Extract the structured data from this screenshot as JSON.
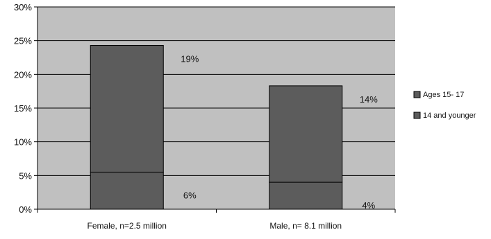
{
  "chart_data": {
    "type": "bar",
    "stacked": true,
    "categories": [
      "Female, n=2.5 million",
      "Male, n= 8.1 million"
    ],
    "series": [
      {
        "name": "14 and younger",
        "values": [
          5.5,
          4.0
        ]
      },
      {
        "name": "Ages 15- 17",
        "values": [
          18.8,
          14.3
        ]
      }
    ],
    "data_labels": {
      "14 and younger": [
        "6%",
        "4%"
      ],
      "Ages 15- 17": [
        "19%",
        "14%"
      ]
    },
    "ylim": [
      0,
      30
    ],
    "y_ticks": [
      0,
      5,
      10,
      15,
      20,
      25,
      30
    ],
    "y_tick_labels": [
      "0%",
      "5%",
      "10%",
      "15%",
      "20%",
      "25%",
      "30%"
    ],
    "xlabel": "",
    "ylabel": "",
    "grid": true,
    "legend_position": "right",
    "colors": {
      "plot_background": "#c0c0c0",
      "bar_fill": "#5c5c5c",
      "legend_swatch": "#5c5c5c",
      "gridline": "#000000",
      "axis": "#000000"
    }
  }
}
